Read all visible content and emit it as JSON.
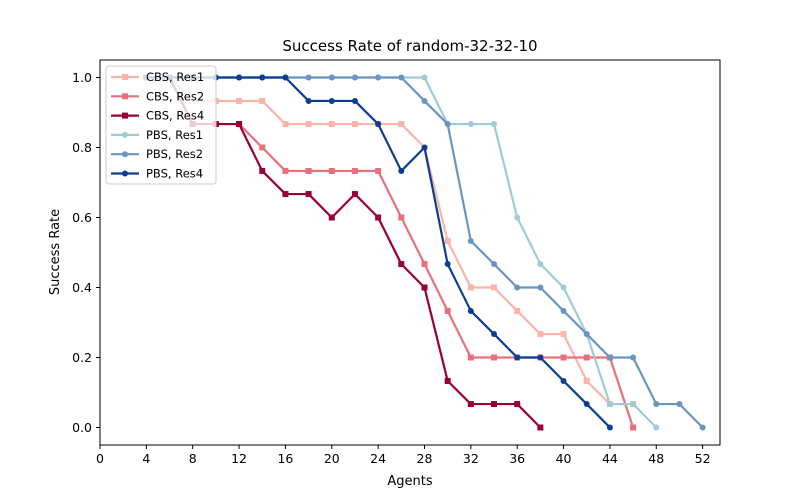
{
  "chart_data": {
    "type": "line",
    "title": "Success Rate of random-32-32-10",
    "xlabel": "Agents",
    "ylabel": "Success Rate",
    "xlim": [
      0,
      53.5
    ],
    "ylim": [
      -0.05,
      1.05
    ],
    "xticks": [
      0,
      4,
      8,
      12,
      16,
      20,
      24,
      28,
      32,
      36,
      40,
      44,
      48,
      52
    ],
    "yticks": [
      0.0,
      0.2,
      0.4,
      0.6,
      0.8,
      1.0
    ],
    "ytick_labels": [
      "0.0",
      "0.2",
      "0.4",
      "0.6",
      "0.8",
      "1.0"
    ],
    "grid": false,
    "legend_position": "upper-left",
    "series": [
      {
        "name": "CBS, Res1",
        "color": "#fbb4a8",
        "marker": "square",
        "x": [
          4,
          6,
          8,
          10,
          12,
          14,
          16,
          18,
          20,
          22,
          24,
          26,
          28,
          30,
          32,
          34,
          36,
          38,
          40,
          42,
          44,
          46
        ],
        "y": [
          1.0,
          1.0,
          0.933,
          0.933,
          0.933,
          0.933,
          0.867,
          0.867,
          0.867,
          0.867,
          0.867,
          0.867,
          0.8,
          0.533,
          0.4,
          0.4,
          0.333,
          0.267,
          0.267,
          0.133,
          0.067,
          0.067
        ]
      },
      {
        "name": "CBS, Res2",
        "color": "#e8707a",
        "marker": "square",
        "x": [
          4,
          6,
          8,
          10,
          12,
          14,
          16,
          18,
          20,
          22,
          24,
          26,
          28,
          30,
          32,
          34,
          36,
          38,
          40,
          42,
          44,
          46
        ],
        "y": [
          1.0,
          1.0,
          0.867,
          0.867,
          0.867,
          0.8,
          0.733,
          0.733,
          0.733,
          0.733,
          0.733,
          0.6,
          0.467,
          0.333,
          0.2,
          0.2,
          0.2,
          0.2,
          0.2,
          0.2,
          0.2,
          0.0
        ]
      },
      {
        "name": "CBS, Res4",
        "color": "#990036",
        "marker": "square",
        "x": [
          4,
          6,
          8,
          10,
          12,
          14,
          16,
          18,
          20,
          22,
          24,
          26,
          28,
          30,
          32,
          34,
          36,
          38
        ],
        "y": [
          1.0,
          1.0,
          0.867,
          0.867,
          0.867,
          0.733,
          0.667,
          0.667,
          0.6,
          0.667,
          0.6,
          0.467,
          0.4,
          0.133,
          0.067,
          0.067,
          0.067,
          0.0
        ]
      },
      {
        "name": "PBS, Res1",
        "color": "#9fcbd6",
        "marker": "circle",
        "x": [
          4,
          6,
          8,
          10,
          12,
          14,
          16,
          18,
          20,
          22,
          24,
          26,
          28,
          30,
          32,
          34,
          36,
          38,
          40,
          42,
          44,
          46,
          48
        ],
        "y": [
          1.0,
          1.0,
          1.0,
          1.0,
          1.0,
          1.0,
          1.0,
          1.0,
          1.0,
          1.0,
          1.0,
          1.0,
          1.0,
          0.867,
          0.867,
          0.867,
          0.6,
          0.467,
          0.4,
          0.267,
          0.067,
          0.067,
          0.0
        ]
      },
      {
        "name": "PBS, Res2",
        "color": "#6a95c0",
        "marker": "circle",
        "x": [
          4,
          6,
          8,
          10,
          12,
          14,
          16,
          18,
          20,
          22,
          24,
          26,
          28,
          30,
          32,
          34,
          36,
          38,
          40,
          42,
          44,
          46,
          48,
          50,
          52
        ],
        "y": [
          1.0,
          1.0,
          1.0,
          1.0,
          1.0,
          1.0,
          1.0,
          1.0,
          1.0,
          1.0,
          1.0,
          1.0,
          0.933,
          0.867,
          0.533,
          0.467,
          0.4,
          0.4,
          0.333,
          0.267,
          0.2,
          0.2,
          0.067,
          0.067,
          0.0
        ]
      },
      {
        "name": "PBS, Res4",
        "color": "#0b3e91",
        "marker": "circle",
        "x": [
          4,
          6,
          8,
          10,
          12,
          14,
          16,
          18,
          20,
          22,
          24,
          26,
          28,
          30,
          32,
          34,
          36,
          38,
          40,
          42,
          44
        ],
        "y": [
          1.0,
          1.0,
          1.0,
          1.0,
          1.0,
          1.0,
          1.0,
          0.933,
          0.933,
          0.933,
          0.867,
          0.733,
          0.8,
          0.467,
          0.333,
          0.267,
          0.2,
          0.2,
          0.133,
          0.067,
          0.0
        ]
      }
    ]
  }
}
